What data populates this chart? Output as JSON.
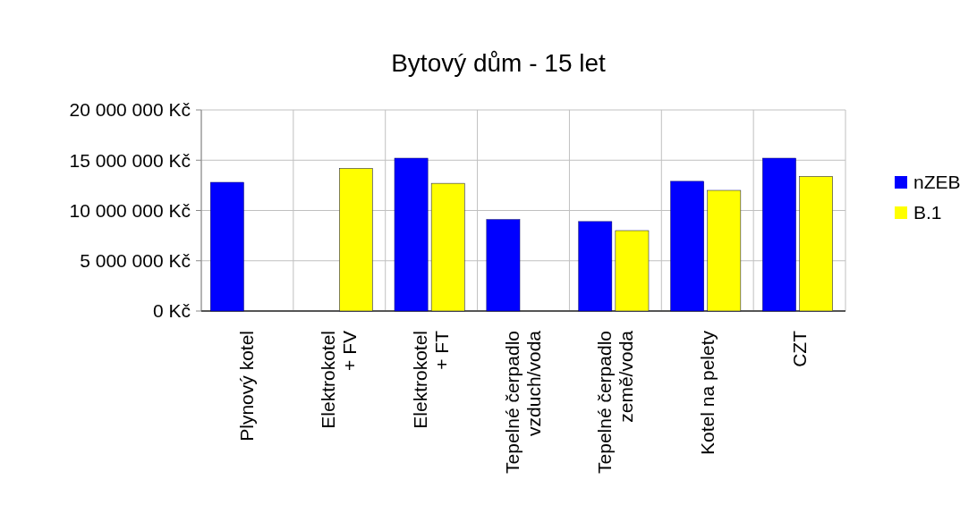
{
  "chart_data": {
    "type": "bar",
    "title": "Bytový dům - 15 let",
    "categories": [
      "Plynový kotel",
      "Elektrokotel\n+ FV",
      "Elektrokotel\n+ FT",
      "Tepelné čerpadlo\nvzduch/voda",
      "Tepelné čerpadlo\nzemě/voda",
      "Kotel na pelety",
      "CZT"
    ],
    "series": [
      {
        "name": "nZEB",
        "color": "#0000ff",
        "values": [
          12800000,
          null,
          15200000,
          9100000,
          8900000,
          12900000,
          15200000
        ]
      },
      {
        "name": "B.1",
        "color": "#ffff00",
        "values": [
          null,
          14200000,
          12700000,
          null,
          8000000,
          12000000,
          13400000
        ]
      }
    ],
    "ylim": [
      0,
      20000000
    ],
    "yticks": [
      {
        "value": 0,
        "label": "0 Kč"
      },
      {
        "value": 5000000,
        "label": "5 000 000 Kč"
      },
      {
        "value": 10000000,
        "label": "10 000 000 Kč"
      },
      {
        "value": 15000000,
        "label": "15 000 000 Kč"
      },
      {
        "value": 20000000,
        "label": "20 000 000 Kč"
      }
    ],
    "grid": true,
    "legend": "right"
  }
}
